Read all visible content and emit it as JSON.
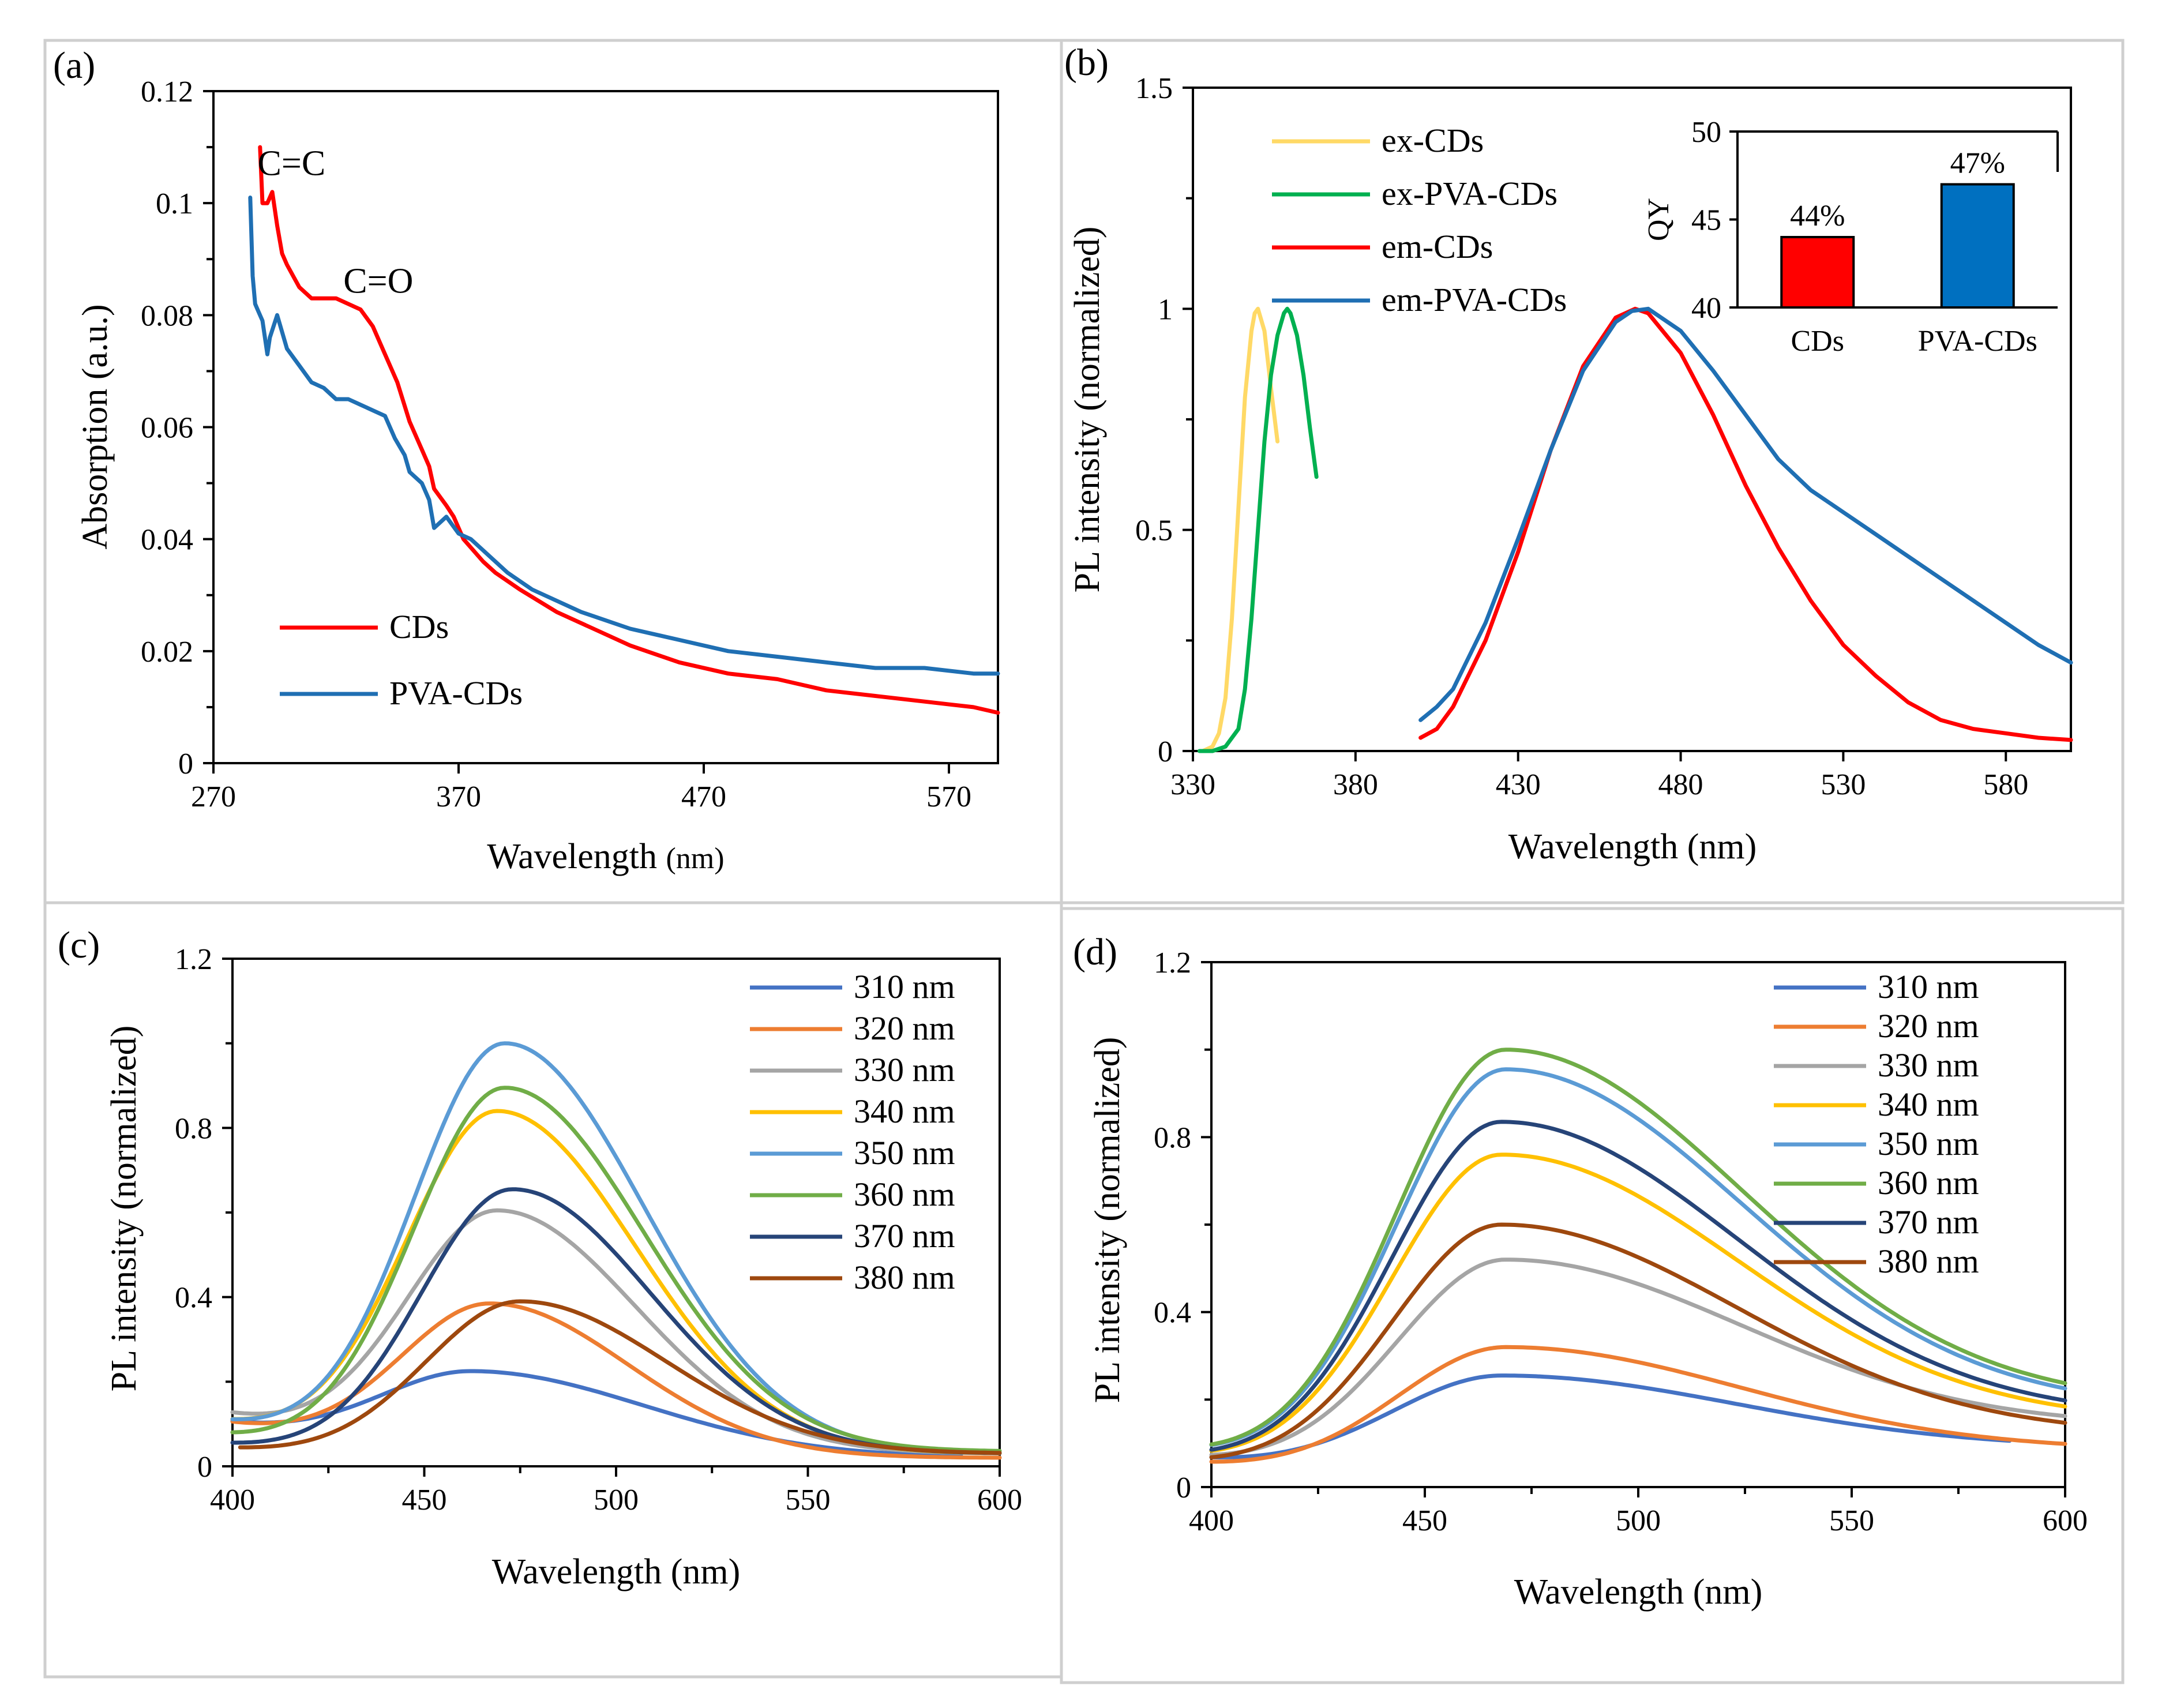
{
  "chart_data": [
    {
      "panel": "(a)",
      "type": "line",
      "xlabel": "Wavelength",
      "xlabel_unit": "(nm)",
      "ylabel": "Absorption (a.u.)",
      "xlim": [
        270,
        590
      ],
      "ylim": [
        0,
        0.12
      ],
      "x_ticks": [
        {
          "value": 270,
          "label": "270"
        },
        {
          "value": 370,
          "label": "370"
        },
        {
          "value": 470,
          "label": "470"
        },
        {
          "value": 570,
          "label": "570"
        }
      ],
      "y_ticks": [
        {
          "value": 0,
          "label": "0"
        },
        {
          "value": 0.02,
          "label": "0.02"
        },
        {
          "value": 0.04,
          "label": "0.04"
        },
        {
          "value": 0.06,
          "label": "0.06"
        },
        {
          "value": 0.08,
          "label": "0.08"
        },
        {
          "value": 0.1,
          "label": "0.1"
        },
        {
          "value": 0.12,
          "label": "0.12"
        }
      ],
      "annotations": [
        {
          "text": "C=C",
          "x": 288,
          "y": 0.105
        },
        {
          "text": "C=O",
          "x": 323,
          "y": 0.084
        }
      ],
      "legend_position": "bottom-left",
      "series": [
        {
          "name": "CDs",
          "color": "#ff0000",
          "x": [
            289,
            290,
            292,
            294,
            296,
            298,
            300,
            305,
            310,
            315,
            320,
            330,
            335,
            340,
            345,
            350,
            355,
            358,
            360,
            365,
            368,
            372,
            376,
            380,
            385,
            395,
            410,
            425,
            440,
            460,
            480,
            500,
            520,
            540,
            560,
            580,
            590
          ],
          "y": [
            0.11,
            0.1,
            0.1,
            0.102,
            0.096,
            0.091,
            0.089,
            0.085,
            0.083,
            0.083,
            0.083,
            0.081,
            0.078,
            0.073,
            0.068,
            0.061,
            0.056,
            0.053,
            0.049,
            0.046,
            0.044,
            0.04,
            0.038,
            0.036,
            0.034,
            0.031,
            0.027,
            0.024,
            0.021,
            0.018,
            0.016,
            0.015,
            0.013,
            0.012,
            0.011,
            0.01,
            0.009
          ]
        },
        {
          "name": "PVA-CDs",
          "color": "#1f6fb3",
          "x": [
            285,
            286,
            287,
            288,
            290,
            292,
            293,
            296,
            300,
            305,
            310,
            315,
            320,
            325,
            330,
            335,
            340,
            344,
            348,
            350,
            355,
            358,
            360,
            365,
            370,
            375,
            380,
            390,
            400,
            420,
            440,
            460,
            480,
            500,
            520,
            540,
            560,
            580,
            590
          ],
          "y": [
            0.101,
            0.087,
            0.082,
            0.081,
            0.079,
            0.073,
            0.076,
            0.08,
            0.074,
            0.071,
            0.068,
            0.067,
            0.065,
            0.065,
            0.064,
            0.063,
            0.062,
            0.058,
            0.055,
            0.052,
            0.05,
            0.047,
            0.042,
            0.044,
            0.041,
            0.04,
            0.038,
            0.034,
            0.031,
            0.027,
            0.024,
            0.022,
            0.02,
            0.019,
            0.018,
            0.017,
            0.017,
            0.016,
            0.016
          ]
        }
      ]
    },
    {
      "panel": "(b)",
      "type": "line",
      "xlabel": "Wavelength (nm)",
      "ylabel": "PL intensity (normalized)",
      "xlim": [
        330,
        600
      ],
      "ylim": [
        0,
        1.5
      ],
      "x_ticks": [
        {
          "value": 330,
          "label": "330"
        },
        {
          "value": 380,
          "label": "380"
        },
        {
          "value": 430,
          "label": "430"
        },
        {
          "value": 480,
          "label": "480"
        },
        {
          "value": 530,
          "label": "530"
        },
        {
          "value": 580,
          "label": "580"
        }
      ],
      "y_ticks": [
        {
          "value": 0,
          "label": "0"
        },
        {
          "value": 0.5,
          "label": "0.5"
        },
        {
          "value": 1,
          "label": "1"
        },
        {
          "value": 1.5,
          "label": "1.5"
        }
      ],
      "legend_position": "top-left",
      "series": [
        {
          "name": "ex-CDs",
          "color": "#ffd966",
          "x": [
            333,
            336,
            338,
            340,
            342,
            344,
            346,
            348,
            349,
            350,
            352,
            354,
            356
          ],
          "y": [
            0.0,
            0.01,
            0.04,
            0.12,
            0.3,
            0.55,
            0.8,
            0.95,
            0.99,
            1.0,
            0.95,
            0.82,
            0.7
          ]
        },
        {
          "name": "ex-PVA-CDs",
          "color": "#00b050",
          "x": [
            332,
            336,
            340,
            344,
            346,
            348,
            350,
            352,
            354,
            356,
            358,
            359,
            360,
            362,
            364,
            366,
            368
          ],
          "y": [
            0.0,
            0.0,
            0.01,
            0.05,
            0.14,
            0.3,
            0.5,
            0.7,
            0.85,
            0.94,
            0.99,
            1.0,
            0.99,
            0.94,
            0.85,
            0.73,
            0.62
          ]
        },
        {
          "name": "em-CDs",
          "color": "#ff0000",
          "x": [
            400,
            405,
            410,
            420,
            430,
            440,
            450,
            460,
            466,
            470,
            480,
            490,
            500,
            510,
            520,
            530,
            540,
            550,
            560,
            570,
            580,
            590,
            600
          ],
          "y": [
            0.03,
            0.05,
            0.1,
            0.25,
            0.45,
            0.68,
            0.87,
            0.98,
            1.0,
            0.99,
            0.9,
            0.76,
            0.6,
            0.46,
            0.34,
            0.24,
            0.17,
            0.11,
            0.07,
            0.05,
            0.04,
            0.03,
            0.025
          ]
        },
        {
          "name": "em-PVA-CDs",
          "color": "#1f6fb3",
          "x": [
            400,
            405,
            410,
            420,
            430,
            440,
            450,
            460,
            465,
            470,
            480,
            490,
            500,
            510,
            520,
            530,
            540,
            550,
            560,
            570,
            580,
            590,
            600
          ],
          "y": [
            0.07,
            0.1,
            0.14,
            0.29,
            0.48,
            0.68,
            0.86,
            0.97,
            0.995,
            1.0,
            0.95,
            0.86,
            0.76,
            0.66,
            0.59,
            0.54,
            0.49,
            0.44,
            0.39,
            0.34,
            0.29,
            0.24,
            0.2
          ]
        }
      ],
      "inset": {
        "type": "bar",
        "ylabel": "QY",
        "ylim": [
          40,
          50
        ],
        "y_ticks": [
          {
            "value": 40,
            "label": "40"
          },
          {
            "value": 45,
            "label": "45"
          },
          {
            "value": 50,
            "label": "50"
          }
        ],
        "categories": [
          "CDs",
          "PVA-CDs"
        ],
        "values": [
          44,
          47
        ],
        "data_labels": [
          "44%",
          "47%"
        ],
        "colors": [
          "#ff0000",
          "#0070c0"
        ]
      }
    },
    {
      "panel": "(c)",
      "type": "line",
      "xlabel": "Wavelength (nm)",
      "ylabel": "PL intensity (normalized)",
      "xlim": [
        400,
        600
      ],
      "ylim": [
        0,
        1.2
      ],
      "x_ticks": [
        {
          "value": 400,
          "label": "400"
        },
        {
          "value": 450,
          "label": "450"
        },
        {
          "value": 500,
          "label": "500"
        },
        {
          "value": 550,
          "label": "550"
        },
        {
          "value": 600,
          "label": "600"
        }
      ],
      "y_ticks": [
        {
          "value": 0,
          "label": "0"
        },
        {
          "value": 0.4,
          "label": "0.4"
        },
        {
          "value": 0.8,
          "label": "0.8"
        },
        {
          "value": 1.2,
          "label": "1.2"
        }
      ],
      "legend_position": "top-right",
      "series": [
        {
          "name": "310 nm",
          "color": "#4472c4",
          "start": 0.1,
          "peak": 0.225,
          "center": 462,
          "width_left": 26,
          "width_right": 45,
          "end": 0.02,
          "x_end": 590
        },
        {
          "name": "320 nm",
          "color": "#ed7d31",
          "start": 0.1,
          "peak": 0.385,
          "center": 467,
          "width_left": 24,
          "width_right": 36,
          "end": 0.02
        },
        {
          "name": "330 nm",
          "color": "#a5a5a5",
          "start": 0.12,
          "peak": 0.605,
          "center": 469,
          "width_left": 24,
          "width_right": 36,
          "end": 0.03
        },
        {
          "name": "340 nm",
          "color": "#ffc000",
          "start": 0.1,
          "peak": 0.84,
          "center": 469,
          "width_left": 24,
          "width_right": 36,
          "end": 0.03
        },
        {
          "name": "350 nm",
          "color": "#5b9bd5",
          "start": 0.1,
          "peak": 1.0,
          "center": 471,
          "width_left": 24,
          "width_right": 36,
          "end": 0.03
        },
        {
          "name": "360 nm",
          "color": "#70ad47",
          "start": 0.07,
          "peak": 0.895,
          "center": 471,
          "width_left": 24,
          "width_right": 36,
          "end": 0.035
        },
        {
          "name": "370 nm",
          "color": "#264478",
          "start": 0.05,
          "peak": 0.655,
          "center": 473,
          "width_left": 24,
          "width_right": 36,
          "end": 0.03
        },
        {
          "name": "380 nm",
          "color": "#9e480e",
          "start": 0.04,
          "peak": 0.39,
          "center": 475,
          "width_left": 25,
          "width_right": 38,
          "end": 0.03,
          "x_start": 402
        }
      ]
    },
    {
      "panel": "(d)",
      "type": "line",
      "xlabel": "Wavelength (nm)",
      "ylabel": "PL intensity (normalized)",
      "xlim": [
        400,
        600
      ],
      "ylim": [
        0,
        1.2
      ],
      "x_ticks": [
        {
          "value": 400,
          "label": "400"
        },
        {
          "value": 450,
          "label": "450"
        },
        {
          "value": 500,
          "label": "500"
        },
        {
          "value": 550,
          "label": "550"
        },
        {
          "value": 600,
          "label": "600"
        }
      ],
      "y_ticks": [
        {
          "value": 0,
          "label": "0"
        },
        {
          "value": 0.4,
          "label": "0.4"
        },
        {
          "value": 0.8,
          "label": "0.8"
        },
        {
          "value": 1.2,
          "label": "1.2"
        }
      ],
      "legend_position": "top-right",
      "series": [
        {
          "name": "310 nm",
          "color": "#4472c4",
          "start": 0.06,
          "peak": 0.255,
          "center": 468,
          "width_left": 27,
          "width_right": 55,
          "end": 0.09,
          "x_end": 587
        },
        {
          "name": "320 nm",
          "color": "#ed7d31",
          "start": 0.05,
          "peak": 0.32,
          "center": 469,
          "width_left": 26,
          "width_right": 55,
          "end": 0.085
        },
        {
          "name": "330 nm",
          "color": "#a5a5a5",
          "start": 0.06,
          "peak": 0.52,
          "center": 469,
          "width_left": 26,
          "width_right": 55,
          "end": 0.14
        },
        {
          "name": "340 nm",
          "color": "#ffc000",
          "start": 0.06,
          "peak": 0.76,
          "center": 468,
          "width_left": 26,
          "width_right": 55,
          "end": 0.15
        },
        {
          "name": "350 nm",
          "color": "#5b9bd5",
          "start": 0.07,
          "peak": 0.955,
          "center": 469,
          "width_left": 26,
          "width_right": 55,
          "end": 0.18
        },
        {
          "name": "360 nm",
          "color": "#70ad47",
          "start": 0.07,
          "peak": 1.0,
          "center": 469,
          "width_left": 26,
          "width_right": 55,
          "end": 0.19
        },
        {
          "name": "370 nm",
          "color": "#264478",
          "start": 0.06,
          "peak": 0.835,
          "center": 468,
          "width_left": 26,
          "width_right": 55,
          "end": 0.16
        },
        {
          "name": "380 nm",
          "color": "#9e480e",
          "start": 0.05,
          "peak": 0.6,
          "center": 468,
          "width_left": 26,
          "width_right": 55,
          "end": 0.12
        }
      ]
    }
  ]
}
